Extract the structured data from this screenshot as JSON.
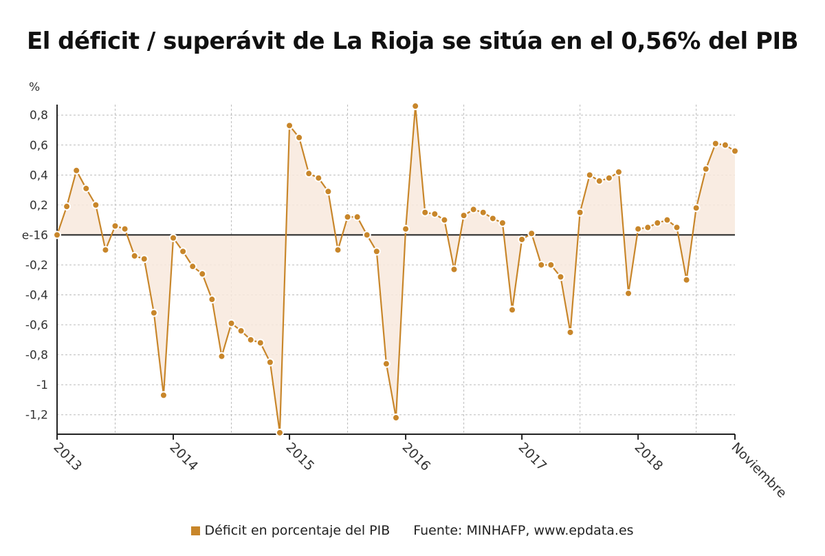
{
  "chart_data": {
    "type": "line",
    "title": "El déficit / superávit de La Rioja se sitúa en el 0,56% del PIB",
    "unit_label": "%",
    "ylim": [
      -1.33,
      0.87
    ],
    "y_ticks": [
      {
        "value": 0.8,
        "label": "0,8"
      },
      {
        "value": 0.6,
        "label": "0,6"
      },
      {
        "value": 0.4,
        "label": "0,4"
      },
      {
        "value": 0.2,
        "label": "0,2"
      },
      {
        "value": 0,
        "label": "e-16"
      },
      {
        "value": -0.2,
        "label": "-0,2"
      },
      {
        "value": -0.4,
        "label": "-0,4"
      },
      {
        "value": -0.6,
        "label": "-0,6"
      },
      {
        "value": -0.8,
        "label": "-0,8"
      },
      {
        "value": -1,
        "label": "-1"
      },
      {
        "value": -1.2,
        "label": "-1,2"
      }
    ],
    "x_ticks": [
      {
        "date": "2013-01",
        "label": "2013"
      },
      {
        "date": "2014-01",
        "label": "2014"
      },
      {
        "date": "2015-01",
        "label": "2015"
      },
      {
        "date": "2016-01",
        "label": "2016"
      },
      {
        "date": "2017-01",
        "label": "2017"
      },
      {
        "date": "2018-01",
        "label": "2018"
      },
      {
        "date": "2018-11",
        "label": "Noviembre"
      }
    ],
    "x_range": [
      "2013-01",
      "2018-11"
    ],
    "grid": true,
    "colors": {
      "line": "#c8862a",
      "fill": "#f8e9dd",
      "zero_line": "#222222",
      "grid": "#bbbbbb"
    },
    "legend_position": "bottom",
    "series": [
      {
        "name": "Déficit en porcentaje del PIB",
        "points": [
          {
            "x": "2013-01",
            "y": 0.0
          },
          {
            "x": "2013-02",
            "y": 0.19
          },
          {
            "x": "2013-03",
            "y": 0.43
          },
          {
            "x": "2013-04",
            "y": 0.31
          },
          {
            "x": "2013-05",
            "y": 0.2
          },
          {
            "x": "2013-06",
            "y": -0.1
          },
          {
            "x": "2013-07",
            "y": 0.06
          },
          {
            "x": "2013-08",
            "y": 0.04
          },
          {
            "x": "2013-09",
            "y": -0.14
          },
          {
            "x": "2013-10",
            "y": -0.16
          },
          {
            "x": "2013-11",
            "y": -0.52
          },
          {
            "x": "2013-12",
            "y": -1.07
          },
          {
            "x": "2014-01",
            "y": -0.02
          },
          {
            "x": "2014-02",
            "y": -0.11
          },
          {
            "x": "2014-03",
            "y": -0.21
          },
          {
            "x": "2014-04",
            "y": -0.26
          },
          {
            "x": "2014-05",
            "y": -0.43
          },
          {
            "x": "2014-06",
            "y": -0.81
          },
          {
            "x": "2014-07",
            "y": -0.59
          },
          {
            "x": "2014-08",
            "y": -0.64
          },
          {
            "x": "2014-09",
            "y": -0.7
          },
          {
            "x": "2014-10",
            "y": -0.72
          },
          {
            "x": "2014-11",
            "y": -0.85
          },
          {
            "x": "2014-12",
            "y": -1.32
          },
          {
            "x": "2015-01",
            "y": 0.73
          },
          {
            "x": "2015-02",
            "y": 0.65
          },
          {
            "x": "2015-03",
            "y": 0.41
          },
          {
            "x": "2015-04",
            "y": 0.38
          },
          {
            "x": "2015-05",
            "y": 0.29
          },
          {
            "x": "2015-06",
            "y": -0.1
          },
          {
            "x": "2015-07",
            "y": 0.12
          },
          {
            "x": "2015-08",
            "y": 0.12
          },
          {
            "x": "2015-09",
            "y": 0.0
          },
          {
            "x": "2015-10",
            "y": -0.11
          },
          {
            "x": "2015-11",
            "y": -0.86
          },
          {
            "x": "2015-12",
            "y": -1.22
          },
          {
            "x": "2016-01",
            "y": 0.04
          },
          {
            "x": "2016-02",
            "y": 0.86
          },
          {
            "x": "2016-03",
            "y": 0.15
          },
          {
            "x": "2016-04",
            "y": 0.14
          },
          {
            "x": "2016-05",
            "y": 0.1
          },
          {
            "x": "2016-06",
            "y": -0.23
          },
          {
            "x": "2016-07",
            "y": 0.13
          },
          {
            "x": "2016-08",
            "y": 0.17
          },
          {
            "x": "2016-09",
            "y": 0.15
          },
          {
            "x": "2016-10",
            "y": 0.11
          },
          {
            "x": "2016-11",
            "y": 0.08
          },
          {
            "x": "2016-12",
            "y": -0.5
          },
          {
            "x": "2017-01",
            "y": -0.03
          },
          {
            "x": "2017-02",
            "y": 0.01
          },
          {
            "x": "2017-03",
            "y": -0.2
          },
          {
            "x": "2017-04",
            "y": -0.2
          },
          {
            "x": "2017-05",
            "y": -0.28
          },
          {
            "x": "2017-06",
            "y": -0.65
          },
          {
            "x": "2017-07",
            "y": 0.15
          },
          {
            "x": "2017-08",
            "y": 0.4
          },
          {
            "x": "2017-09",
            "y": 0.36
          },
          {
            "x": "2017-10",
            "y": 0.38
          },
          {
            "x": "2017-11",
            "y": 0.42
          },
          {
            "x": "2017-12",
            "y": -0.39
          },
          {
            "x": "2018-01",
            "y": 0.04
          },
          {
            "x": "2018-02",
            "y": 0.05
          },
          {
            "x": "2018-03",
            "y": 0.08
          },
          {
            "x": "2018-04",
            "y": 0.1
          },
          {
            "x": "2018-05",
            "y": 0.05
          },
          {
            "x": "2018-06",
            "y": -0.3
          },
          {
            "x": "2018-07",
            "y": 0.18
          },
          {
            "x": "2018-08",
            "y": 0.44
          },
          {
            "x": "2018-09",
            "y": 0.61
          },
          {
            "x": "2018-10",
            "y": 0.6
          },
          {
            "x": "2018-11",
            "y": 0.56
          }
        ]
      }
    ]
  },
  "footer": {
    "legend_label": "Déficit en porcentaje del PIB",
    "source": "Fuente: MINHAFP, www.epdata.es"
  }
}
